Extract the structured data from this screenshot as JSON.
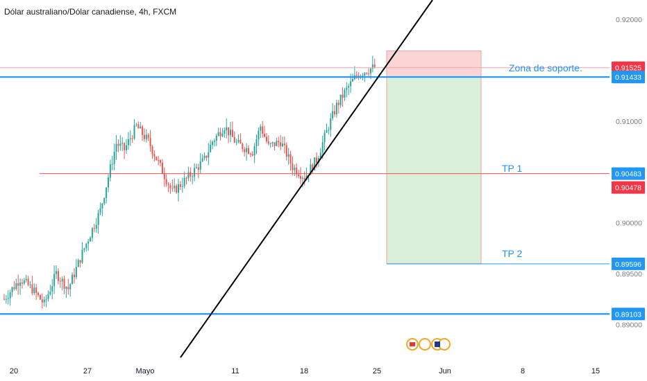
{
  "chart_data": {
    "type": "candlestick",
    "title": "Dólar australiano/Dólar canadiense, 4h, FXCM",
    "ylim": [
      0.8888,
      0.9217
    ],
    "y_ticks": [
      "0.92000",
      "0.91000",
      "0.90000",
      "0.89500",
      "0.89000"
    ],
    "x_ticks": [
      "20",
      "27",
      "Mayo",
      "11",
      "18",
      "25",
      "Jun",
      "8",
      "15"
    ],
    "price_labels": [
      {
        "value": "0.91525",
        "color": "#f23645"
      },
      {
        "value": "0.91433",
        "color": "#2196f3"
      },
      {
        "value": "0.90483",
        "color": "#2196f3"
      },
      {
        "value": "0.90478",
        "color": "#f23645"
      },
      {
        "value": "0.89596",
        "color": "#2196f3"
      },
      {
        "value": "0.89103",
        "color": "#2196f3"
      }
    ],
    "horizontal_lines": [
      {
        "level": 0.91433,
        "color": "#2196f3",
        "style": "thick"
      },
      {
        "level": 0.91525,
        "color": "#f4a3a8",
        "style": "thin"
      },
      {
        "level": 0.90483,
        "color": "#ef5350",
        "style": "thin"
      },
      {
        "level": 0.89596,
        "color": "#2196f3",
        "style": "thin"
      },
      {
        "level": 0.89103,
        "color": "#2196f3",
        "style": "thick"
      }
    ],
    "annotations": [
      "Zona de soporte.",
      "TP 1",
      "TP 2"
    ],
    "position": {
      "direction": "short",
      "entry": 0.91433,
      "stop": 0.9169,
      "target": 0.89596
    },
    "trendline": {
      "color": "#000000"
    },
    "colors": {
      "up": "#26a69a",
      "down": "#ef5350",
      "upper_zone": "#fbd4d6",
      "lower_zone": "#d9efd9",
      "axis_text": "#787b86"
    },
    "candle_count": 186
  }
}
